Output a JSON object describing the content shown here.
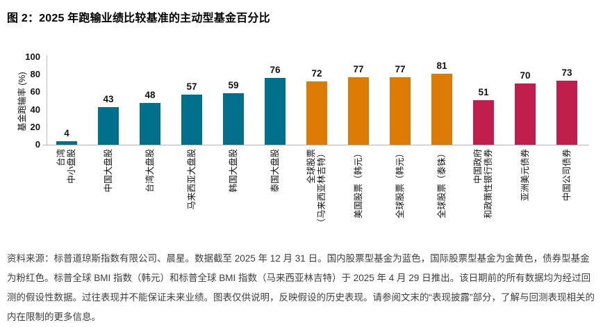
{
  "title": "图 2：2025 年跑输业绩比较基准的主动型基金百分比",
  "chart_data": {
    "type": "bar",
    "title": "2025 年跑输业绩比较基准的主动型基金百分比",
    "xlabel": "",
    "ylabel": "基金跑输率 (%)",
    "ylim": [
      0,
      100
    ],
    "yticks": [
      0,
      20,
      40,
      60,
      80,
      100
    ],
    "grid": false,
    "legend_position": "none",
    "categories": [
      [
        "台湾",
        "中小盘股"
      ],
      [
        "中国大盘股"
      ],
      [
        "台湾大盘股"
      ],
      [
        "马来西亚大盘股"
      ],
      [
        "韩国大盘股"
      ],
      [
        "泰国大盘股"
      ],
      [
        "全球股票",
        "（马来西亚林吉特）"
      ],
      [
        "美国股票（韩元）"
      ],
      [
        "全球股票（韩元）"
      ],
      [
        "全球股票（泰铢）"
      ],
      [
        "中国政府",
        "和政策性银行债券"
      ],
      [
        "亚洲美元债券"
      ],
      [
        "中国公司债券"
      ]
    ],
    "values": [
      4,
      43,
      48,
      57,
      59,
      76,
      72,
      77,
      77,
      81,
      51,
      70,
      73
    ],
    "groups": [
      "国内股票型基金",
      "国内股票型基金",
      "国内股票型基金",
      "国内股票型基金",
      "国内股票型基金",
      "国内股票型基金",
      "国际股票型基金",
      "国际股票型基金",
      "国际股票型基金",
      "国际股票型基金",
      "债券型基金",
      "债券型基金",
      "债券型基金"
    ],
    "group_colors": {
      "国内股票型基金": "#00708C",
      "国际股票型基金": "#DD7B04",
      "债券型基金": "#C11D4D"
    }
  },
  "footnote": "资料来源：标普道琼斯指数有限公司、晨星。数据截至 2025 年 12 月 31 日。国内股票型基金为蓝色，国际股票型基金为金黄色，债券型基金为粉红色。标普全球 BMI 指数（韩元）和标普全球 BMI 指数（马来西亚林吉特）于 2025 年 4 月 29 日推出。该日期前的所有数据均为经过回测的假设性数据。过往表现并不能保证未来业绩。图表仅供说明，反映假设的历史表现。请参阅文末的“表现披露”部分，了解与回测表现相关的内在限制的更多信息。"
}
